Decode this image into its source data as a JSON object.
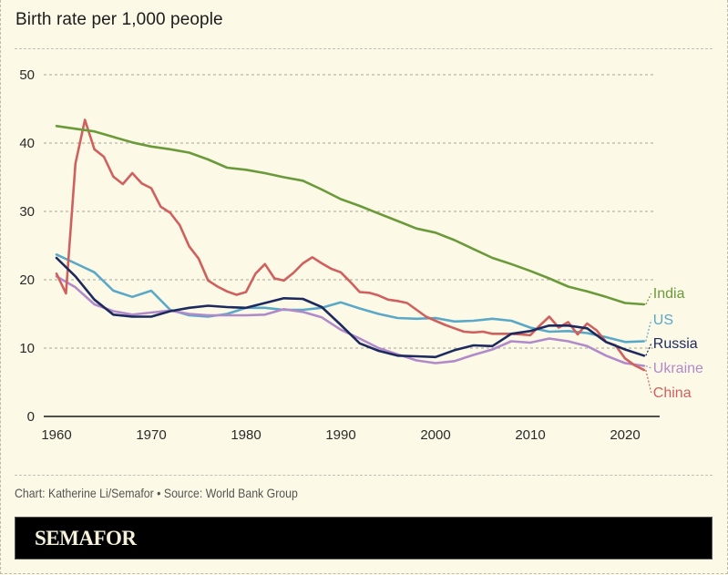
{
  "chart_data": {
    "type": "line",
    "title": "Birth rate per 1,000 people",
    "xlabel": "",
    "ylabel": "",
    "ylim": [
      0,
      50
    ],
    "xlim": [
      1960,
      2022
    ],
    "yticks": [
      "0",
      "10",
      "20",
      "30",
      "40",
      "50"
    ],
    "xticks": [
      "1960",
      "1970",
      "1980",
      "1990",
      "2000",
      "2010",
      "2020"
    ],
    "grid": true,
    "legend_position": "right-inline",
    "series": [
      {
        "name": "India",
        "color": "#6a9a3a",
        "x": [
          1960,
          1962,
          1964,
          1966,
          1968,
          1970,
          1972,
          1974,
          1976,
          1978,
          1980,
          1982,
          1984,
          1986,
          1988,
          1990,
          1992,
          1994,
          1996,
          1998,
          2000,
          2002,
          2004,
          2006,
          2008,
          2010,
          2012,
          2014,
          2016,
          2018,
          2020,
          2022
        ],
        "values": [
          42.5,
          42.1,
          41.7,
          40.9,
          40.1,
          39.5,
          39.1,
          38.6,
          37.6,
          36.4,
          36.1,
          35.6,
          35.0,
          34.5,
          33.2,
          31.8,
          30.8,
          29.7,
          28.6,
          27.5,
          26.9,
          25.8,
          24.5,
          23.2,
          22.3,
          21.3,
          20.2,
          19.0,
          18.3,
          17.5,
          16.6,
          16.4
        ]
      },
      {
        "name": "US",
        "color": "#5aa8c8",
        "x": [
          1960,
          1962,
          1964,
          1966,
          1968,
          1970,
          1972,
          1974,
          1976,
          1978,
          1980,
          1982,
          1984,
          1986,
          1988,
          1990,
          1992,
          1994,
          1996,
          1998,
          2000,
          2002,
          2004,
          2006,
          2008,
          2010,
          2012,
          2014,
          2016,
          2018,
          2020,
          2022
        ],
        "values": [
          23.7,
          22.4,
          21.1,
          18.4,
          17.5,
          18.4,
          15.6,
          14.8,
          14.6,
          15.0,
          15.9,
          15.9,
          15.6,
          15.6,
          15.9,
          16.7,
          15.8,
          15.0,
          14.4,
          14.3,
          14.4,
          13.9,
          14.0,
          14.3,
          14.0,
          13.0,
          12.4,
          12.5,
          12.2,
          11.6,
          10.9,
          11.0
        ]
      },
      {
        "name": "Russia",
        "color": "#1c2a5e",
        "x": [
          1960,
          1962,
          1964,
          1966,
          1968,
          1970,
          1972,
          1974,
          1976,
          1978,
          1980,
          1982,
          1984,
          1986,
          1988,
          1990,
          1992,
          1994,
          1996,
          1998,
          2000,
          2002,
          2004,
          2006,
          2008,
          2010,
          2012,
          2014,
          2016,
          2018,
          2020,
          2022
        ],
        "values": [
          23.2,
          20.5,
          17.1,
          14.9,
          14.6,
          14.6,
          15.4,
          15.9,
          16.2,
          16.0,
          15.9,
          16.6,
          17.3,
          17.2,
          16.0,
          13.4,
          10.7,
          9.6,
          8.9,
          8.8,
          8.7,
          9.7,
          10.4,
          10.3,
          12.1,
          12.5,
          13.3,
          13.3,
          12.9,
          10.9,
          9.8,
          8.9
        ]
      },
      {
        "name": "Ukraine",
        "color": "#b18ac9",
        "x": [
          1960,
          1962,
          1964,
          1966,
          1968,
          1970,
          1972,
          1974,
          1976,
          1978,
          1980,
          1982,
          1984,
          1986,
          1988,
          1990,
          1992,
          1994,
          1996,
          1998,
          2000,
          2002,
          2004,
          2006,
          2008,
          2010,
          2012,
          2014,
          2016,
          2018,
          2020,
          2022
        ],
        "values": [
          20.5,
          18.9,
          16.4,
          15.4,
          14.9,
          15.2,
          15.5,
          15.0,
          14.8,
          14.8,
          14.8,
          14.9,
          15.7,
          15.3,
          14.5,
          12.7,
          11.4,
          10.0,
          9.1,
          8.2,
          7.8,
          8.1,
          9.0,
          9.8,
          11.0,
          10.8,
          11.4,
          11.0,
          10.3,
          8.9,
          7.8,
          7.4
        ]
      },
      {
        "name": "China",
        "color": "#d0605e",
        "x": [
          1960,
          1961,
          1962,
          1963,
          1964,
          1965,
          1966,
          1967,
          1968,
          1969,
          1970,
          1971,
          1972,
          1973,
          1974,
          1975,
          1976,
          1977,
          1978,
          1979,
          1980,
          1981,
          1982,
          1983,
          1984,
          1985,
          1986,
          1987,
          1988,
          1989,
          1990,
          1991,
          1992,
          1993,
          1994,
          1995,
          1996,
          1997,
          1998,
          1999,
          2000,
          2001,
          2002,
          2003,
          2004,
          2005,
          2006,
          2007,
          2008,
          2009,
          2010,
          2011,
          2012,
          2013,
          2014,
          2015,
          2016,
          2017,
          2018,
          2019,
          2020,
          2021,
          2022
        ],
        "values": [
          20.9,
          18.0,
          37.0,
          43.4,
          39.1,
          38.0,
          35.1,
          34.0,
          35.6,
          34.1,
          33.4,
          30.7,
          29.8,
          28.0,
          24.9,
          23.1,
          19.9,
          19.0,
          18.3,
          17.8,
          18.2,
          20.9,
          22.3,
          20.2,
          19.9,
          21.0,
          22.4,
          23.3,
          22.4,
          21.6,
          21.1,
          19.7,
          18.2,
          18.1,
          17.7,
          17.1,
          16.9,
          16.6,
          15.6,
          14.6,
          14.0,
          13.4,
          12.9,
          12.4,
          12.3,
          12.4,
          12.1,
          12.1,
          12.1,
          12.0,
          11.9,
          13.3,
          14.6,
          13.0,
          13.8,
          12.0,
          13.6,
          12.6,
          10.9,
          10.4,
          8.5,
          7.5,
          6.8
        ]
      }
    ],
    "legend_labels": [
      "India",
      "US",
      "Russia",
      "Ukraine",
      "China"
    ]
  },
  "footer": {
    "credit": "Chart: Katherine Li/Semafor • Source: World Bank Group",
    "brand": "SEMAFOR"
  }
}
